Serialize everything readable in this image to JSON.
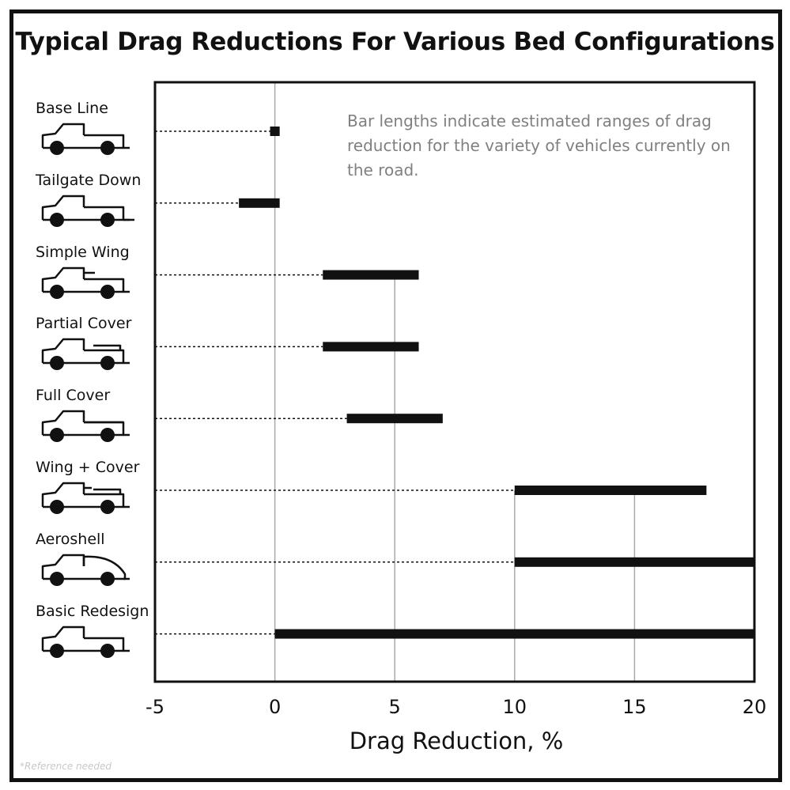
{
  "chart_data": {
    "type": "bar",
    "title": "Typical Drag Reductions For Various Bed Configurations",
    "xlabel": "Drag Reduction, %",
    "ylabel": "",
    "xlim": [
      -5,
      20
    ],
    "xticks": [
      -5,
      0,
      5,
      10,
      15,
      20
    ],
    "annotation": "Bar lengths indicate estimated ranges of drag reduction for the variety of vehicles currently on the road.",
    "categories": [
      "Base Line",
      "Tailgate Down",
      "Simple Wing",
      "Partial Cover",
      "Full Cover",
      "Wing + Cover",
      "Aeroshell",
      "Basic Redesign"
    ],
    "ranges": [
      {
        "category": "Base Line",
        "min": -0.2,
        "max": 0.2
      },
      {
        "category": "Tailgate Down",
        "min": -1.5,
        "max": 0.2
      },
      {
        "category": "Simple Wing",
        "min": 2,
        "max": 6
      },
      {
        "category": "Partial Cover",
        "min": 2,
        "max": 6
      },
      {
        "category": "Full Cover",
        "min": 3,
        "max": 7
      },
      {
        "category": "Wing + Cover",
        "min": 10,
        "max": 18
      },
      {
        "category": "Aeroshell",
        "min": 10,
        "max": 20
      },
      {
        "category": "Basic Redesign",
        "min": 0,
        "max": 20
      }
    ],
    "truck_icons": [
      "pickup-baseline",
      "pickup-tailgate-down",
      "pickup-simple-wing",
      "pickup-partial-cover",
      "pickup-full-cover",
      "pickup-wing-cover",
      "pickup-aeroshell",
      "pickup-basic-redesign"
    ],
    "colors": {
      "bar": "#111111",
      "axis": "#111111",
      "grid": "#aaaaaa",
      "note": "#808080"
    }
  },
  "footnote": "*Reference needed"
}
